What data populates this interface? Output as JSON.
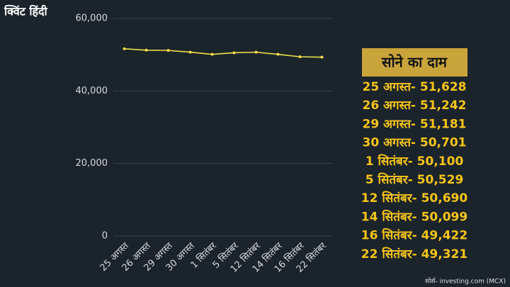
{
  "chart_data": {
    "type": "line",
    "categories": [
      "25 अगस्त",
      "26 अगस्त",
      "29 अगस्त",
      "30 अगस्त",
      "1 सितंबर",
      "5 सितंबर",
      "12 सितंबर",
      "14 सितंबर",
      "16 सितंबर",
      "22 सितंबर"
    ],
    "values": [
      51628,
      51242,
      51181,
      50701,
      50100,
      50529,
      50690,
      50099,
      49422,
      49321
    ],
    "color": "#f2df4a",
    "ylim": [
      0,
      60000
    ],
    "yticks": [
      0,
      {
        "value": 20000,
        "label": "20,000"
      },
      {
        "value": 40000,
        "label": "40,000"
      },
      {
        "value": 60000,
        "label": "60,000"
      }
    ],
    "grid": true
  },
  "logo": "क्विंट हिंदी",
  "price_list": {
    "title": "सोने का दाम",
    "items": [
      "25 अगस्त- 51,628",
      "26 अगस्त- 51,242",
      "29 अगस्त- 51,181",
      "30 अगस्त- 50,701",
      "1 सितंबर- 50,100",
      "5 सितंबर- 50,529",
      "12 सितंबर- 50,690",
      "14 सितंबर- 50,099",
      "16 सितंबर- 49,422",
      "22 सितंबर- 49,321"
    ]
  },
  "source": "सोर्स- investing.com (MCX)"
}
